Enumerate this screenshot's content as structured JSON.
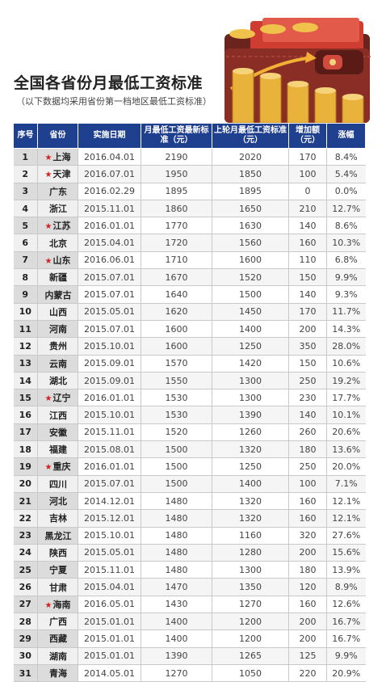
{
  "title": "全国各省份月最低工资标准",
  "subtitle": "（以下数据均采用省份第一档地区最低工资标准）",
  "headers": {
    "seq": "序号",
    "province": "省份",
    "date": "实施日期",
    "newStd": "月最低工资最新标准（元）",
    "prevStd": "上轮月最低工资标准（元）",
    "increase": "增加额（元）",
    "rate": "涨幅"
  },
  "rows": [
    {
      "seq": "1",
      "star": "★",
      "province": "上海",
      "date": "2016.04.01",
      "newStd": "2190",
      "prevStd": "2020",
      "increase": "170",
      "rate": "8.4%"
    },
    {
      "seq": "2",
      "star": "★",
      "province": "天津",
      "date": "2016.07.01",
      "newStd": "1950",
      "prevStd": "1850",
      "increase": "100",
      "rate": "5.4%"
    },
    {
      "seq": "3",
      "star": "",
      "province": "广东",
      "date": "2016.02.29",
      "newStd": "1895",
      "prevStd": "1895",
      "increase": "0",
      "rate": "0.0%"
    },
    {
      "seq": "4",
      "star": "",
      "province": "浙江",
      "date": "2015.11.01",
      "newStd": "1860",
      "prevStd": "1650",
      "increase": "210",
      "rate": "12.7%"
    },
    {
      "seq": "5",
      "star": "★",
      "province": "江苏",
      "date": "2016.01.01",
      "newStd": "1770",
      "prevStd": "1630",
      "increase": "140",
      "rate": "8.6%"
    },
    {
      "seq": "6",
      "star": "",
      "province": "北京",
      "date": "2015.04.01",
      "newStd": "1720",
      "prevStd": "1560",
      "increase": "160",
      "rate": "10.3%"
    },
    {
      "seq": "7",
      "star": "★",
      "province": "山东",
      "date": "2016.06.01",
      "newStd": "1710",
      "prevStd": "1600",
      "increase": "110",
      "rate": "6.8%"
    },
    {
      "seq": "8",
      "star": "",
      "province": "新疆",
      "date": "2015.07.01",
      "newStd": "1670",
      "prevStd": "1520",
      "increase": "150",
      "rate": "9.9%"
    },
    {
      "seq": "9",
      "star": "",
      "province": "内蒙古",
      "date": "2015.07.01",
      "newStd": "1640",
      "prevStd": "1500",
      "increase": "140",
      "rate": "9.3%"
    },
    {
      "seq": "10",
      "star": "",
      "province": "山西",
      "date": "2015.05.01",
      "newStd": "1620",
      "prevStd": "1450",
      "increase": "170",
      "rate": "11.7%"
    },
    {
      "seq": "11",
      "star": "",
      "province": "河南",
      "date": "2015.07.01",
      "newStd": "1600",
      "prevStd": "1400",
      "increase": "200",
      "rate": "14.3%"
    },
    {
      "seq": "12",
      "star": "",
      "province": "贵州",
      "date": "2015.10.01",
      "newStd": "1600",
      "prevStd": "1250",
      "increase": "350",
      "rate": "28.0%"
    },
    {
      "seq": "13",
      "star": "",
      "province": "云南",
      "date": "2015.09.01",
      "newStd": "1570",
      "prevStd": "1420",
      "increase": "150",
      "rate": "10.6%"
    },
    {
      "seq": "14",
      "star": "",
      "province": "湖北",
      "date": "2015.09.01",
      "newStd": "1550",
      "prevStd": "1300",
      "increase": "250",
      "rate": "19.2%"
    },
    {
      "seq": "15",
      "star": "★",
      "province": "辽宁",
      "date": "2016.01.01",
      "newStd": "1530",
      "prevStd": "1300",
      "increase": "230",
      "rate": "17.7%"
    },
    {
      "seq": "16",
      "star": "",
      "province": "江西",
      "date": "2015.10.01",
      "newStd": "1530",
      "prevStd": "1390",
      "increase": "140",
      "rate": "10.1%"
    },
    {
      "seq": "17",
      "star": "",
      "province": "安徽",
      "date": "2015.11.01",
      "newStd": "1520",
      "prevStd": "1260",
      "increase": "260",
      "rate": "20.6%"
    },
    {
      "seq": "18",
      "star": "",
      "province": "福建",
      "date": "2015.08.01",
      "newStd": "1500",
      "prevStd": "1320",
      "increase": "180",
      "rate": "13.6%"
    },
    {
      "seq": "19",
      "star": "★",
      "province": "重庆",
      "date": "2016.01.01",
      "newStd": "1500",
      "prevStd": "1250",
      "increase": "250",
      "rate": "20.0%"
    },
    {
      "seq": "20",
      "star": "",
      "province": "四川",
      "date": "2015.07.01",
      "newStd": "1500",
      "prevStd": "1400",
      "increase": "100",
      "rate": "7.1%"
    },
    {
      "seq": "21",
      "star": "",
      "province": "河北",
      "date": "2014.12.01",
      "newStd": "1480",
      "prevStd": "1320",
      "increase": "160",
      "rate": "12.1%"
    },
    {
      "seq": "22",
      "star": "",
      "province": "吉林",
      "date": "2015.12.01",
      "newStd": "1480",
      "prevStd": "1320",
      "increase": "160",
      "rate": "12.1%"
    },
    {
      "seq": "23",
      "star": "",
      "province": "黑龙江",
      "date": "2015.10.01",
      "newStd": "1480",
      "prevStd": "1160",
      "increase": "320",
      "rate": "27.6%"
    },
    {
      "seq": "24",
      "star": "",
      "province": "陕西",
      "date": "2015.05.01",
      "newStd": "1480",
      "prevStd": "1280",
      "increase": "200",
      "rate": "15.6%"
    },
    {
      "seq": "25",
      "star": "",
      "province": "宁夏",
      "date": "2015.11.01",
      "newStd": "1480",
      "prevStd": "1300",
      "increase": "180",
      "rate": "13.9%"
    },
    {
      "seq": "26",
      "star": "",
      "province": "甘肃",
      "date": "2015.04.01",
      "newStd": "1470",
      "prevStd": "1350",
      "increase": "120",
      "rate": "8.9%"
    },
    {
      "seq": "27",
      "star": "★",
      "province": "海南",
      "date": "2016.05.01",
      "newStd": "1430",
      "prevStd": "1270",
      "increase": "160",
      "rate": "12.6%"
    },
    {
      "seq": "28",
      "star": "",
      "province": "广西",
      "date": "2015.01.01",
      "newStd": "1400",
      "prevStd": "1200",
      "increase": "200",
      "rate": "16.7%"
    },
    {
      "seq": "29",
      "star": "",
      "province": "西藏",
      "date": "2015.01.01",
      "newStd": "1400",
      "prevStd": "1200",
      "increase": "200",
      "rate": "16.7%"
    },
    {
      "seq": "30",
      "star": "",
      "province": "湖南",
      "date": "2015.01.01",
      "newStd": "1390",
      "prevStd": "1265",
      "increase": "125",
      "rate": "9.9%"
    },
    {
      "seq": "31",
      "star": "",
      "province": "青海",
      "date": "2014.05.01",
      "newStd": "1270",
      "prevStd": "1050",
      "increase": "220",
      "rate": "20.9%"
    }
  ],
  "colors": {
    "header_bg": "#1f3f8f",
    "star": "#d62020",
    "wallet": "#7a2a22",
    "coin": "#e9b23a"
  }
}
